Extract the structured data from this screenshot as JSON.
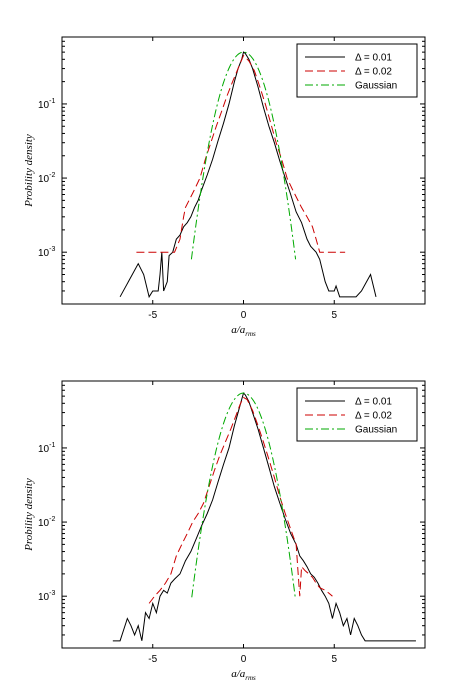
{
  "chart_data": [
    {
      "type": "line",
      "yscale": "log",
      "xlim": [
        -10,
        10
      ],
      "ylim": [
        0.0002,
        0.8
      ],
      "xticks": [
        -5,
        0,
        5
      ],
      "yticks": [
        0.001,
        0.01,
        0.1
      ],
      "ytick_base": "10",
      "ytick_exps": [
        "-3",
        "-2",
        "-1"
      ],
      "xlabel_main": "a/a",
      "xlabel_sub": "rms",
      "ylabel": "Probility density",
      "legend_position": "top-right",
      "grid": false,
      "series": [
        {
          "name": "Δ = 0.01",
          "color": "#000000",
          "dash": "solid",
          "points": [
            [
              -6.8,
              0.00025
            ],
            [
              -5.8,
              0.0007
            ],
            [
              -5.5,
              0.0005
            ],
            [
              -5.2,
              0.00025
            ],
            [
              -5.0,
              0.0003
            ],
            [
              -4.7,
              0.0003
            ],
            [
              -4.6,
              0.0005
            ],
            [
              -4.5,
              0.001
            ],
            [
              -4.4,
              0.0003
            ],
            [
              -4.2,
              0.0004
            ],
            [
              -4.1,
              0.0009
            ],
            [
              -3.9,
              0.001
            ],
            [
              -3.7,
              0.0015
            ],
            [
              -3.5,
              0.0017
            ],
            [
              -3.3,
              0.0022
            ],
            [
              -3.1,
              0.0025
            ],
            [
              -2.9,
              0.003
            ],
            [
              -2.7,
              0.004
            ],
            [
              -2.5,
              0.005
            ],
            [
              -2.3,
              0.007
            ],
            [
              -2.0,
              0.011
            ],
            [
              -1.7,
              0.018
            ],
            [
              -1.4,
              0.032
            ],
            [
              -1.1,
              0.055
            ],
            [
              -0.8,
              0.1
            ],
            [
              -0.5,
              0.2
            ],
            [
              -0.3,
              0.3
            ],
            [
              -0.1,
              0.4
            ],
            [
              0.0,
              0.5
            ],
            [
              0.1,
              0.48
            ],
            [
              0.3,
              0.4
            ],
            [
              0.5,
              0.3
            ],
            [
              0.8,
              0.17
            ],
            [
              1.1,
              0.09
            ],
            [
              1.4,
              0.05
            ],
            [
              1.7,
              0.03
            ],
            [
              2.0,
              0.017
            ],
            [
              2.3,
              0.01
            ],
            [
              2.6,
              0.006
            ],
            [
              2.9,
              0.0035
            ],
            [
              3.2,
              0.0025
            ],
            [
              3.5,
              0.0015
            ],
            [
              3.7,
              0.0012
            ],
            [
              4.0,
              0.001
            ],
            [
              4.2,
              0.0008
            ],
            [
              4.5,
              0.0004
            ],
            [
              4.7,
              0.0003
            ],
            [
              5.0,
              0.0003
            ],
            [
              5.1,
              0.00035
            ],
            [
              5.3,
              0.00025
            ],
            [
              6.2,
              0.00025
            ],
            [
              6.5,
              0.0003
            ],
            [
              7.0,
              0.0005
            ],
            [
              7.3,
              0.00025
            ]
          ]
        },
        {
          "name": "Δ = 0.02",
          "color": "#cc0000",
          "dash": "8,4",
          "points": [
            [
              -5.9,
              0.001
            ],
            [
              -3.8,
              0.001
            ],
            [
              -3.5,
              0.0015
            ],
            [
              -3.3,
              0.003
            ],
            [
              -3.2,
              0.004
            ],
            [
              -3.0,
              0.005
            ],
            [
              -2.7,
              0.007
            ],
            [
              -2.4,
              0.01
            ],
            [
              -2.1,
              0.018
            ],
            [
              -1.8,
              0.03
            ],
            [
              -1.5,
              0.05
            ],
            [
              -1.2,
              0.08
            ],
            [
              -0.9,
              0.13
            ],
            [
              -0.6,
              0.2
            ],
            [
              -0.3,
              0.3
            ],
            [
              0.0,
              0.45
            ],
            [
              0.3,
              0.38
            ],
            [
              0.6,
              0.28
            ],
            [
              0.9,
              0.17
            ],
            [
              1.2,
              0.1
            ],
            [
              1.5,
              0.055
            ],
            [
              1.8,
              0.03
            ],
            [
              2.1,
              0.018
            ],
            [
              2.4,
              0.01
            ],
            [
              2.7,
              0.007
            ],
            [
              3.0,
              0.005
            ],
            [
              3.2,
              0.004
            ],
            [
              3.5,
              0.003
            ],
            [
              3.8,
              0.0022
            ],
            [
              4.0,
              0.0015
            ],
            [
              4.2,
              0.001
            ],
            [
              5.6,
              0.001
            ]
          ]
        },
        {
          "name": "Gaussian",
          "color": "#00aa00",
          "dash": "8,3,2,3",
          "gaussian": {
            "peak": 0.5,
            "sigma": 0.8,
            "xmin": -2.87,
            "xmax": 2.87
          }
        }
      ]
    },
    {
      "type": "line",
      "yscale": "log",
      "xlim": [
        -10,
        10
      ],
      "ylim": [
        0.0002,
        0.8
      ],
      "xticks": [
        -5,
        0,
        5
      ],
      "yticks": [
        0.001,
        0.01,
        0.1
      ],
      "ytick_base": "10",
      "ytick_exps": [
        "-3",
        "-2",
        "-1"
      ],
      "xlabel_main": "a/a",
      "xlabel_sub": "rms",
      "ylabel": "Probility density",
      "legend_position": "top-right",
      "grid": false,
      "series": [
        {
          "name": "Δ = 0.01",
          "color": "#000000",
          "dash": "solid",
          "points": [
            [
              -7.2,
              0.00025
            ],
            [
              -6.8,
              0.00025
            ],
            [
              -6.4,
              0.0005
            ],
            [
              -6.2,
              0.0004
            ],
            [
              -6.0,
              0.0003
            ],
            [
              -5.8,
              0.0004
            ],
            [
              -5.6,
              0.00025
            ],
            [
              -5.4,
              0.0006
            ],
            [
              -5.2,
              0.0005
            ],
            [
              -5.0,
              0.0008
            ],
            [
              -4.8,
              0.0006
            ],
            [
              -4.6,
              0.001
            ],
            [
              -4.4,
              0.0012
            ],
            [
              -4.2,
              0.0011
            ],
            [
              -4.0,
              0.0015
            ],
            [
              -3.8,
              0.0017
            ],
            [
              -3.5,
              0.002
            ],
            [
              -3.2,
              0.003
            ],
            [
              -2.9,
              0.004
            ],
            [
              -2.6,
              0.006
            ],
            [
              -2.3,
              0.009
            ],
            [
              -2.0,
              0.013
            ],
            [
              -1.7,
              0.02
            ],
            [
              -1.4,
              0.035
            ],
            [
              -1.1,
              0.06
            ],
            [
              -0.8,
              0.1
            ],
            [
              -0.5,
              0.2
            ],
            [
              -0.3,
              0.3
            ],
            [
              -0.1,
              0.45
            ],
            [
              0.0,
              0.55
            ],
            [
              0.1,
              0.52
            ],
            [
              0.3,
              0.42
            ],
            [
              0.5,
              0.3
            ],
            [
              0.8,
              0.18
            ],
            [
              1.1,
              0.1
            ],
            [
              1.4,
              0.055
            ],
            [
              1.7,
              0.03
            ],
            [
              2.0,
              0.018
            ],
            [
              2.3,
              0.011
            ],
            [
              2.6,
              0.007
            ],
            [
              2.9,
              0.005
            ],
            [
              3.1,
              0.0035
            ],
            [
              3.3,
              0.003
            ],
            [
              3.5,
              0.0025
            ],
            [
              3.7,
              0.002
            ],
            [
              3.9,
              0.0018
            ],
            [
              4.1,
              0.0015
            ],
            [
              4.3,
              0.0012
            ],
            [
              4.5,
              0.001
            ],
            [
              4.7,
              0.0008
            ],
            [
              4.9,
              0.0005
            ],
            [
              5.1,
              0.0008
            ],
            [
              5.3,
              0.0006
            ],
            [
              5.5,
              0.0004
            ],
            [
              5.7,
              0.0005
            ],
            [
              5.9,
              0.0003
            ],
            [
              6.1,
              0.0005
            ],
            [
              6.3,
              0.0004
            ],
            [
              6.5,
              0.0003
            ],
            [
              6.7,
              0.00025
            ],
            [
              9.5,
              0.00025
            ]
          ]
        },
        {
          "name": "Δ = 0.02",
          "color": "#cc0000",
          "dash": "8,4",
          "points": [
            [
              -5.2,
              0.0008
            ],
            [
              -4.9,
              0.001
            ],
            [
              -4.6,
              0.0012
            ],
            [
              -4.3,
              0.0015
            ],
            [
              -4.0,
              0.002
            ],
            [
              -3.7,
              0.0035
            ],
            [
              -3.4,
              0.005
            ],
            [
              -3.1,
              0.007
            ],
            [
              -2.8,
              0.01
            ],
            [
              -2.5,
              0.013
            ],
            [
              -2.2,
              0.018
            ],
            [
              -1.9,
              0.03
            ],
            [
              -1.6,
              0.05
            ],
            [
              -1.3,
              0.08
            ],
            [
              -1.0,
              0.12
            ],
            [
              -0.7,
              0.18
            ],
            [
              -0.4,
              0.28
            ],
            [
              -0.2,
              0.38
            ],
            [
              0.0,
              0.48
            ],
            [
              0.2,
              0.45
            ],
            [
              0.5,
              0.32
            ],
            [
              0.8,
              0.2
            ],
            [
              1.1,
              0.12
            ],
            [
              1.4,
              0.07
            ],
            [
              1.7,
              0.04
            ],
            [
              2.0,
              0.022
            ],
            [
              2.3,
              0.013
            ],
            [
              2.6,
              0.008
            ],
            [
              2.9,
              0.005
            ],
            [
              3.0,
              0.0022
            ],
            [
              3.1,
              0.001
            ],
            [
              3.2,
              0.0025
            ],
            [
              3.4,
              0.0022
            ],
            [
              3.6,
              0.002
            ],
            [
              3.8,
              0.0018
            ],
            [
              4.0,
              0.0015
            ],
            [
              4.2,
              0.0013
            ],
            [
              4.5,
              0.0012
            ],
            [
              4.7,
              0.0011
            ],
            [
              4.9,
              0.001
            ]
          ]
        },
        {
          "name": "Gaussian",
          "color": "#00aa00",
          "dash": "8,3,2,3",
          "gaussian": {
            "peak": 0.55,
            "sigma": 0.8,
            "xmin": -2.85,
            "xmax": 2.85
          }
        }
      ]
    }
  ]
}
